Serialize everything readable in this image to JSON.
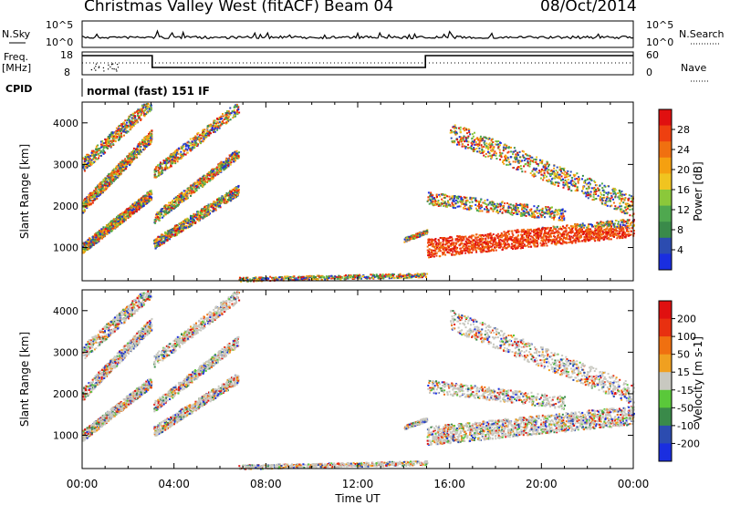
{
  "header": {
    "title": "Christmas Valley West (fitACF)",
    "beam": "Beam 04",
    "date": "08/Oct/2014"
  },
  "noise_panel": {
    "left_label": "N.Sky",
    "left_ticks": [
      "10^5",
      "10^0"
    ],
    "right_ticks": [
      "10^5",
      "10^0"
    ],
    "right_label": "N.Search"
  },
  "freq_panel": {
    "left_label_top": "Freq.",
    "left_label_bottom": "[MHz]",
    "left_ticks": [
      "18",
      "8"
    ],
    "right_ticks": [
      "60",
      "0"
    ],
    "right_label": "Nave"
  },
  "cpid": {
    "label": "CPID",
    "value": "normal (fast) 151 IF"
  },
  "colors": {
    "power_scale": [
      "#1a2ee0",
      "#2c4cb0",
      "#3a8a4a",
      "#4fa84f",
      "#8bc83a",
      "#f0c420",
      "#f5a010",
      "#f07010",
      "#ee4010",
      "#e01010"
    ],
    "velocity_scale": [
      "#1a2ee0",
      "#2c4cb0",
      "#3a8a4a",
      "#5ac83a",
      "#c8c8c0",
      "#f0a020",
      "#f07010",
      "#e83010",
      "#e01010"
    ]
  },
  "chart_data": [
    {
      "type": "line",
      "name": "noise",
      "series": [
        {
          "name": "N.Sky"
        },
        {
          "name": "N.Search"
        }
      ],
      "yscale": "log",
      "yticks": [
        "10^0",
        "10^5"
      ]
    },
    {
      "type": "line",
      "name": "frequency",
      "x_hours": [
        0,
        3.05,
        3.05,
        14.95,
        14.95,
        24
      ],
      "freq_mhz": [
        16.4,
        16.4,
        11.2,
        11.2,
        16.4,
        16.4
      ],
      "ylim_left": [
        8,
        18
      ],
      "ylim_right": [
        0,
        60
      ],
      "series": [
        {
          "name": "Nave"
        }
      ]
    },
    {
      "type": "heatmap",
      "name": "power",
      "xlabel": "",
      "ylabel": "Slant Range [km]",
      "yticks": [
        1000,
        2000,
        3000,
        4000
      ],
      "ylim": [
        200,
        4500
      ],
      "colorbar_label": "Power [dB]",
      "colorbar_ticks": [
        "28",
        "24",
        "20",
        "16",
        "12",
        "8",
        "4"
      ],
      "colorbar_range": [
        0,
        30
      ]
    },
    {
      "type": "heatmap",
      "name": "velocity",
      "xlabel": "Time UT",
      "ylabel": "Slant Range [km]",
      "yticks": [
        1000,
        2000,
        3000,
        4000
      ],
      "ylim": [
        200,
        4500
      ],
      "colorbar_label": "Velocity [m s-1]",
      "colorbar_ticks": [
        "200",
        "100",
        "50",
        "15",
        "-15",
        "-50",
        "-100",
        "-200"
      ],
      "colorbar_range": [
        -250,
        250
      ]
    }
  ],
  "time_axis": {
    "xlim_hours": [
      0,
      24
    ],
    "tick_labels": [
      "00:00",
      "04:00",
      "08:00",
      "12:00",
      "16:00",
      "20:00",
      "00:00"
    ],
    "xlabel": "Time UT"
  }
}
